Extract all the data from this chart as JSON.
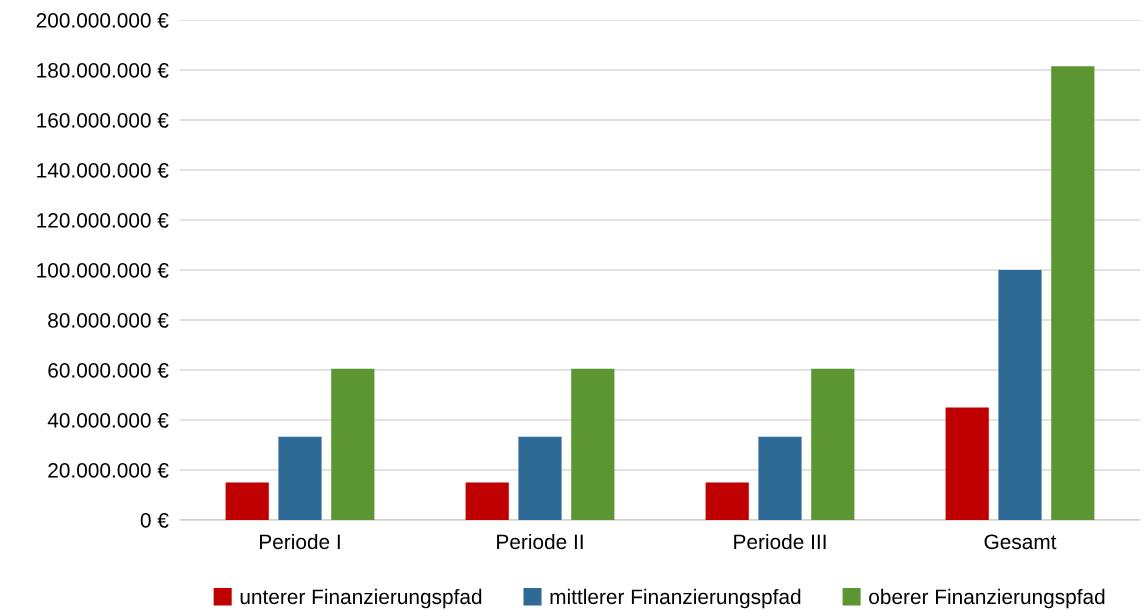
{
  "chart_data": {
    "type": "bar",
    "categories": [
      "Periode I",
      "Periode II",
      "Periode III",
      "Gesamt"
    ],
    "series": [
      {
        "name": "unterer Finanzierungspfad",
        "color": "#c00000",
        "values": [
          15000000,
          15000000,
          15000000,
          45000000
        ]
      },
      {
        "name": "mittlerer Finanzierungspfad",
        "color": "#2e6a96",
        "values": [
          33300000,
          33300000,
          33300000,
          100000000
        ]
      },
      {
        "name": "oberer Finanzierungspfad",
        "color": "#5b9632",
        "values": [
          60500000,
          60500000,
          60500000,
          181500000
        ]
      }
    ],
    "ylim": [
      0,
      200000000
    ],
    "yticks": [
      {
        "value": 0,
        "label": "0 €"
      },
      {
        "value": 20000000,
        "label": "20.000.000 €"
      },
      {
        "value": 40000000,
        "label": "40.000.000 €"
      },
      {
        "value": 60000000,
        "label": "60.000.000 €"
      },
      {
        "value": 80000000,
        "label": "80.000.000 €"
      },
      {
        "value": 100000000,
        "label": "100.000.000 €"
      },
      {
        "value": 120000000,
        "label": "120.000.000 €"
      },
      {
        "value": 140000000,
        "label": "140.000.000 €"
      },
      {
        "value": 160000000,
        "label": "160.000.000 €"
      },
      {
        "value": 180000000,
        "label": "180.000.000 €"
      },
      {
        "value": 200000000,
        "label": "200.000.000 €"
      }
    ],
    "grid": "y",
    "legend": "bottom"
  }
}
